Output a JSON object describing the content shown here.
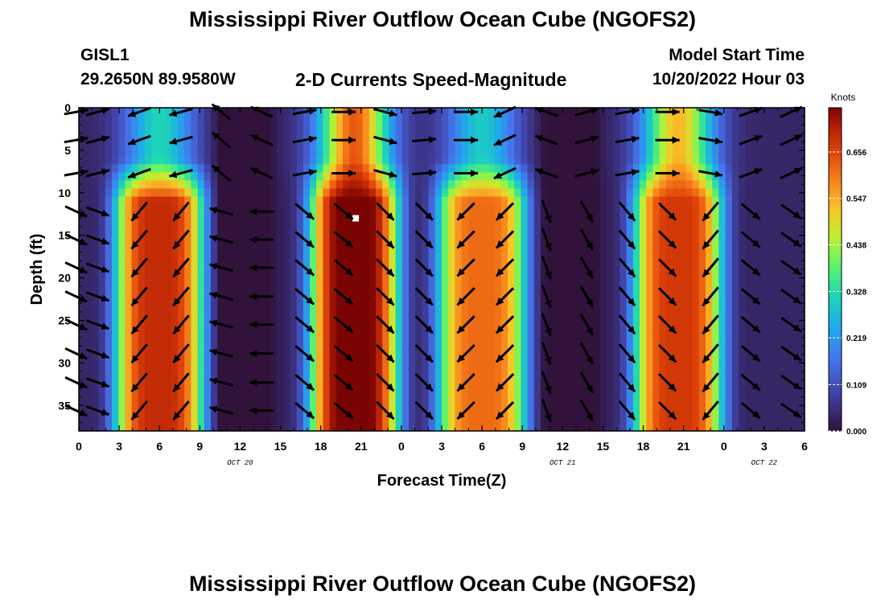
{
  "page": {
    "title": "Mississippi River Outflow Ocean Cube (NGOFS2)",
    "station_id": "GISL1",
    "coords": "29.2650N  89.9580W",
    "plot_title": "2-D Currents Speed-Magnitude",
    "model_start_label": "Model Start Time",
    "model_start_value": "10/20/2022 Hour 03",
    "second_title": "Mississippi River Outflow Ocean Cube (NGOFS2)"
  },
  "chart_data": {
    "type": "heatmap",
    "title": "2-D Currents Speed-Magnitude",
    "xlabel": "Forecast Time(Z)",
    "ylabel": "Depth (ft)",
    "x_hours_from_oct20_00z": [
      0,
      54
    ],
    "xlim_hours": [
      0,
      54
    ],
    "ylim_ft": [
      0,
      38
    ],
    "y_inverted": true,
    "x_tick_labels": [
      "0",
      "3",
      "6",
      "9",
      "12",
      "15",
      "18",
      "21",
      "0",
      "3",
      "6",
      "9",
      "12",
      "15",
      "18",
      "21",
      "0",
      "3",
      "6"
    ],
    "y_ticks": [
      0,
      5,
      10,
      15,
      20,
      25,
      30,
      35
    ],
    "date_labels": [
      {
        "text": "OCT 20",
        "hour": 12
      },
      {
        "text": "OCT 21",
        "hour": 36
      },
      {
        "text": "OCT 22",
        "hour": 51
      }
    ],
    "colorbar": {
      "label": "Knots",
      "min": 0.0,
      "max": 0.76,
      "ticks": [
        "0.000",
        "0.109",
        "0.219",
        "0.328",
        "0.438",
        "0.547",
        "0.656"
      ],
      "tick_values": [
        0.0,
        0.109,
        0.219,
        0.328,
        0.438,
        0.547,
        0.656
      ]
    },
    "max_speed_marker": {
      "hour": 20.6,
      "depth_ft": 13
    },
    "speed_peaks": [
      {
        "hour": 6.0,
        "deep_knots": 0.66,
        "surface_knots": 0.28
      },
      {
        "hour": 20.5,
        "deep_knots": 0.74,
        "surface_knots": 0.6
      },
      {
        "hour": 30.0,
        "deep_knots": 0.58,
        "surface_knots": 0.26
      },
      {
        "hour": 44.6,
        "deep_knots": 0.64,
        "surface_knots": 0.5
      }
    ],
    "speed_minima_hours": [
      12.2,
      36.5
    ],
    "vector_columns_hours": [
      -0.2,
      1.4,
      4.5,
      7.6,
      10.6,
      13.6,
      16.8,
      19.7,
      22.8,
      25.7,
      28.8,
      31.7,
      34.8,
      37.8,
      40.8,
      43.8,
      47.0,
      50.0,
      53.0
    ],
    "vector_depths_ft": [
      0.5,
      3.8,
      7.7,
      12.2,
      15.5,
      18.8,
      22.2,
      25.5,
      28.9,
      32.3,
      35.6
    ],
    "vector_angles_deg": {
      "surface": [
        10,
        15,
        -160,
        -165,
        140,
        155,
        10,
        0,
        -15,
        5,
        0,
        -155,
        160,
        15,
        10,
        0,
        -10,
        20,
        25
      ],
      "deep": [
        -25,
        -20,
        -130,
        -130,
        165,
        180,
        -40,
        -40,
        -45,
        -45,
        -135,
        -135,
        -70,
        -60,
        -50,
        -45,
        -130,
        -40,
        -35
      ]
    }
  }
}
